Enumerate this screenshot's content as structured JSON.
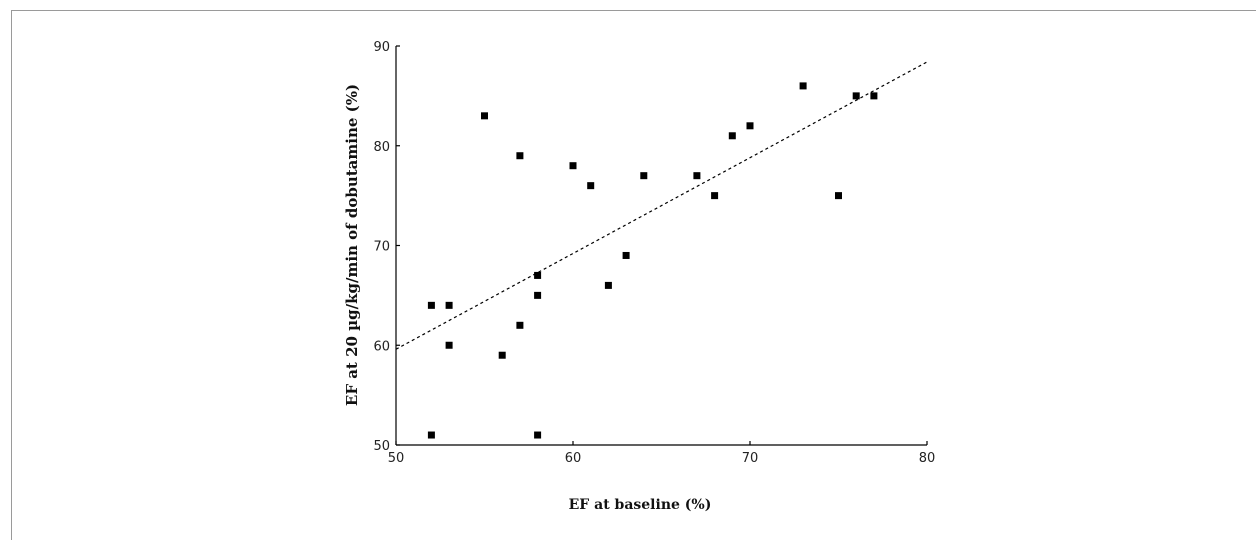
{
  "chart_data": {
    "type": "scatter",
    "title": "",
    "xlabel": "EF at baseline (%)",
    "ylabel": "EF at 20 µg/kg/min of dobutamine (%)",
    "xlim": [
      50,
      80
    ],
    "ylim": [
      50,
      90
    ],
    "xticks": [
      50,
      60,
      70,
      80
    ],
    "yticks": [
      50,
      60,
      70,
      80,
      90
    ],
    "grid": false,
    "points": [
      {
        "x": 52,
        "y": 64
      },
      {
        "x": 53,
        "y": 64
      },
      {
        "x": 53,
        "y": 60
      },
      {
        "x": 52,
        "y": 51
      },
      {
        "x": 55,
        "y": 83
      },
      {
        "x": 56,
        "y": 59
      },
      {
        "x": 57,
        "y": 79
      },
      {
        "x": 57,
        "y": 62
      },
      {
        "x": 58,
        "y": 67
      },
      {
        "x": 58,
        "y": 65
      },
      {
        "x": 58,
        "y": 51
      },
      {
        "x": 60,
        "y": 78
      },
      {
        "x": 61,
        "y": 76
      },
      {
        "x": 62,
        "y": 66
      },
      {
        "x": 63,
        "y": 69
      },
      {
        "x": 64,
        "y": 77
      },
      {
        "x": 67,
        "y": 77
      },
      {
        "x": 68,
        "y": 75
      },
      {
        "x": 69,
        "y": 81
      },
      {
        "x": 70,
        "y": 82
      },
      {
        "x": 73,
        "y": 86
      },
      {
        "x": 75,
        "y": 75
      },
      {
        "x": 76,
        "y": 85
      },
      {
        "x": 77,
        "y": 85
      }
    ],
    "trendline": {
      "style": "dashed",
      "x": [
        50,
        80
      ],
      "y": [
        59.6,
        88.4
      ]
    },
    "colors": {
      "points": "#000000",
      "axes": "#000000",
      "trendline": "#000000"
    }
  }
}
